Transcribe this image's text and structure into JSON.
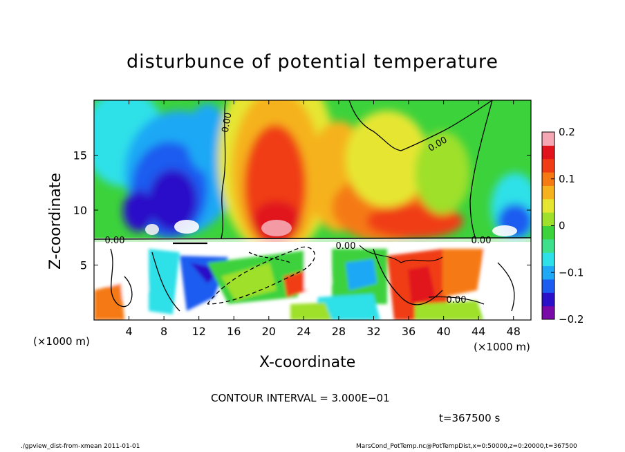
{
  "chart_data": {
    "type": "heatmap",
    "title": "disturbunce of potential temperature",
    "xlabel": "X-coordinate",
    "ylabel": "Z-coordinate",
    "x_unit": "(×1000 m)",
    "xlim": [
      0,
      50
    ],
    "ylim": [
      0,
      20
    ],
    "x_ticks": [
      4,
      8,
      12,
      16,
      20,
      24,
      28,
      32,
      36,
      40,
      44,
      48
    ],
    "y_ticks": [
      5,
      10,
      15
    ],
    "colorbar": {
      "range": [
        -0.2,
        0.2
      ],
      "tick_values": [
        0.2,
        0.1,
        0,
        -0.1,
        -0.2
      ],
      "tick_labels": [
        "0.2",
        "0.1",
        "0",
        "−0.1",
        "−0.2"
      ],
      "colors": [
        "#7a0aa8",
        "#2a10c8",
        "#1d5cf0",
        "#1fa8f5",
        "#2ee0e8",
        "#3fe08c",
        "#3cd23c",
        "#9ee02a",
        "#e6e632",
        "#f5b21e",
        "#f57a14",
        "#f03c14",
        "#e1141e",
        "#f5a8b4"
      ]
    },
    "contour_labels": [
      "0.00",
      "0.00",
      "0.00",
      "0.00",
      "0.00",
      "0.00"
    ],
    "contour_interval": "CONTOUR INTERVAL = 3.000E−01",
    "time": "t=367500 s"
  },
  "footer": {
    "left": "./gpview_dist-from-xmean   2011-01-01",
    "right": "MarsCond_PotTemp.nc@PotTempDist,x=0:50000,z=0:20000,t=367500"
  }
}
